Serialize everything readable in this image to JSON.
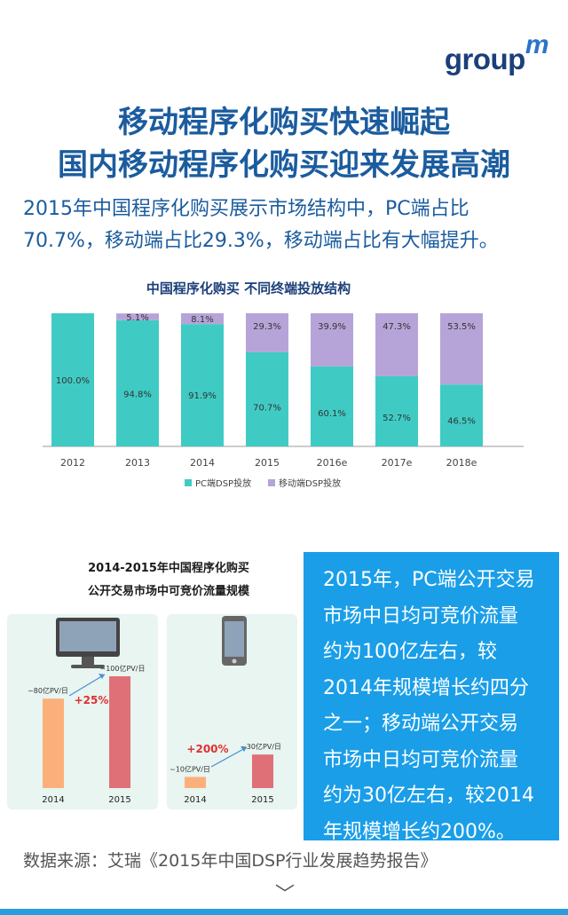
{
  "logo": {
    "text": "group",
    "mark": "m"
  },
  "headline": {
    "line1": "移动程序化购买快速崛起",
    "line2": "国内移动程序化购买迎来发展高潮"
  },
  "intro": {
    "line1": "2015年中国程序化购买展示市场结构中，PC端占比",
    "line2": "70.7%，移动端占比29.3%，移动端占比有大幅提升。"
  },
  "chart_data": [
    {
      "type": "bar",
      "stacked": true,
      "title": "中国程序化购买 不同终端投放结构",
      "categories": [
        "2012",
        "2013",
        "2014",
        "2015",
        "2016e",
        "2017e",
        "2018e"
      ],
      "ylim": [
        0,
        100
      ],
      "grid": false,
      "legend_position": "bottom",
      "series": [
        {
          "name": "PC端DSP投放",
          "color": "#3fcbc4",
          "values": [
            100.0,
            94.8,
            91.9,
            70.7,
            60.1,
            52.7,
            46.5
          ],
          "labels": [
            "100.0%",
            "94.8%",
            "91.9%",
            "70.7%",
            "60.1%",
            "52.7%",
            "46.5%"
          ]
        },
        {
          "name": "移动端DSP投放",
          "color": "#b6a4d8",
          "values": [
            0,
            5.1,
            8.1,
            29.3,
            39.9,
            47.3,
            53.5
          ],
          "labels": [
            "",
            "5.1%",
            "8.1%",
            "29.3%",
            "39.9%",
            "47.3%",
            "53.5%"
          ]
        }
      ]
    },
    {
      "type": "bar",
      "title": "PC端",
      "categories": [
        "2014",
        "2015"
      ],
      "values": [
        80,
        100
      ],
      "labels": [
        "~80亿PV/日",
        "~100亿PV/日"
      ],
      "colors": [
        "#fbb07c",
        "#e07078"
      ],
      "growth": "+25%",
      "unit": "亿PV/日"
    },
    {
      "type": "bar",
      "title": "移动端",
      "categories": [
        "2014",
        "2015"
      ],
      "values": [
        10,
        30
      ],
      "labels": [
        "~10亿PV/日",
        "~30亿PV/日"
      ],
      "colors": [
        "#fbb07c",
        "#e07078"
      ],
      "growth": "+200%",
      "unit": "亿PV/日"
    }
  ],
  "traffic": {
    "title_line1": "2014-2015年中国程序化购买",
    "title_line2": "公开交易市场中可竞价流量规模",
    "pc_icon": "monitor-icon",
    "mobile_icon": "smartphone-icon"
  },
  "note": {
    "lines": [
      "2015年，PC端公开交易",
      "市场中日均可竞价流量",
      "约为100亿左右，较",
      "2014年规模增长约四分",
      "之一；移动端公开交易",
      "市场中日均可竞价流量",
      "约为30亿左右，较2014",
      "年规模增长约200%。"
    ]
  },
  "source": {
    "text": "数据来源：艾瑞《2015年中国DSP行业发展趋势报告》"
  },
  "colors": {
    "headline": "#1b5c9e",
    "note_bg": "#1a9ee8",
    "pc": "#3fcbc4",
    "mobile": "#b6a4d8"
  }
}
